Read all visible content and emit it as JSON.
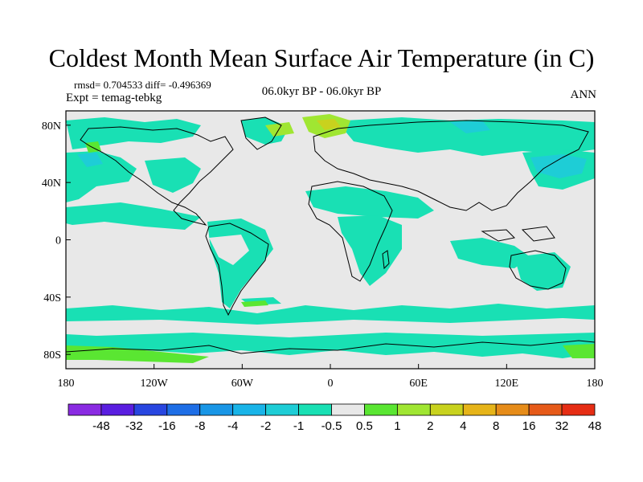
{
  "title": "Coldest Month Mean Surface Air Temperature (in C)",
  "stats": {
    "rmsd_label": "rmsd= 0.704533 diff= -0.496369"
  },
  "experiment": "Expt = temag-tebkg",
  "period": "06.0kyr BP - 06.0kyr BP",
  "season": "ANN",
  "map": {
    "projection": "cylindrical-equidistant",
    "lon_range": [
      -180,
      180
    ],
    "lat_range": [
      -90,
      90
    ],
    "x_ticks": [
      "180",
      "120W",
      "60W",
      "0",
      "60E",
      "120E",
      "180"
    ],
    "y_ticks": [
      "80N",
      "40N",
      "0",
      "40S",
      "80S"
    ],
    "background_color": "#e8e8e8",
    "coastline_color": "#000000"
  },
  "colorbar": {
    "labels": [
      "-48",
      "-32",
      "-16",
      "-8",
      "-4",
      "-2",
      "-1",
      "-0.5",
      "0.5",
      "1",
      "2",
      "4",
      "8",
      "16",
      "32",
      "48"
    ],
    "colors": [
      "#8a2be2",
      "#5a1ee0",
      "#2846e0",
      "#1e6ee6",
      "#1996e6",
      "#19b4e8",
      "#1ecdd6",
      "#19e0b4",
      "#e8e8e8",
      "#5ae632",
      "#a0e632",
      "#c8d21e",
      "#e6b419",
      "#e68c19",
      "#e65a19",
      "#e62d14"
    ]
  }
}
